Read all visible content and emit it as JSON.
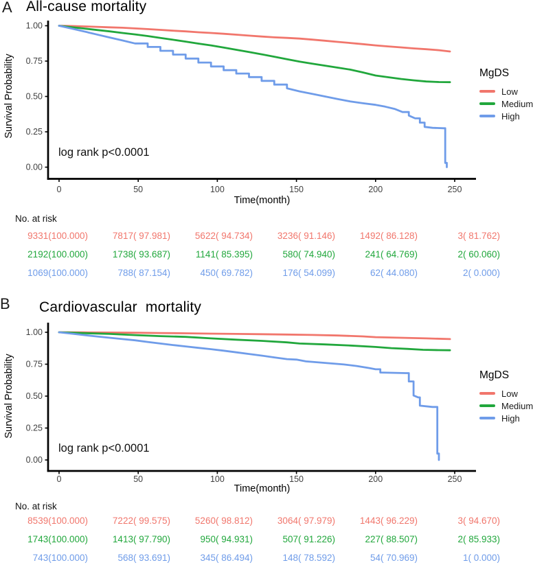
{
  "chart_data": [
    {
      "type": "line",
      "subtype": "kaplan_meier_step",
      "panel_label": "A",
      "title": "All-cause mortality",
      "xlabel": "Time(month)",
      "ylabel": "Survival Probability",
      "annotation": "log rank p<0.0001",
      "xlim": [
        0,
        250
      ],
      "ylim": [
        0,
        1
      ],
      "xticks": [
        0,
        50,
        100,
        150,
        200,
        250
      ],
      "yticks": [
        1.0,
        0.75,
        0.5,
        0.25,
        0.0
      ],
      "grid": false,
      "legend": {
        "title": "MgDS",
        "position": "right"
      },
      "series": [
        {
          "name": "Low",
          "color": "#F1766C",
          "points": [
            [
              0,
              1
            ],
            [
              8,
              0.998
            ],
            [
              16,
              0.995
            ],
            [
              24,
              0.992
            ],
            [
              32,
              0.989
            ],
            [
              40,
              0.986
            ],
            [
              48,
              0.981
            ],
            [
              56,
              0.976
            ],
            [
              64,
              0.971
            ],
            [
              72,
              0.965
            ],
            [
              80,
              0.96
            ],
            [
              88,
              0.954
            ],
            [
              96,
              0.949
            ],
            [
              104,
              0.943
            ],
            [
              112,
              0.937
            ],
            [
              120,
              0.93
            ],
            [
              128,
              0.924
            ],
            [
              136,
              0.918
            ],
            [
              144,
              0.914
            ],
            [
              152,
              0.909
            ],
            [
              160,
              0.902
            ],
            [
              168,
              0.894
            ],
            [
              176,
              0.886
            ],
            [
              184,
              0.878
            ],
            [
              192,
              0.87
            ],
            [
              200,
              0.861
            ],
            [
              208,
              0.854
            ],
            [
              216,
              0.847
            ],
            [
              224,
              0.84
            ],
            [
              232,
              0.834
            ],
            [
              240,
              0.827
            ],
            [
              247,
              0.818
            ]
          ]
        },
        {
          "name": "Medium",
          "color": "#21A73C",
          "points": [
            [
              0,
              1
            ],
            [
              8,
              0.99
            ],
            [
              16,
              0.98
            ],
            [
              24,
              0.97
            ],
            [
              32,
              0.96
            ],
            [
              40,
              0.949
            ],
            [
              48,
              0.939
            ],
            [
              56,
              0.927
            ],
            [
              64,
              0.914
            ],
            [
              72,
              0.901
            ],
            [
              80,
              0.888
            ],
            [
              88,
              0.874
            ],
            [
              96,
              0.861
            ],
            [
              104,
              0.846
            ],
            [
              112,
              0.83
            ],
            [
              120,
              0.814
            ],
            [
              128,
              0.798
            ],
            [
              136,
              0.781
            ],
            [
              144,
              0.763
            ],
            [
              152,
              0.746
            ],
            [
              160,
              0.732
            ],
            [
              168,
              0.718
            ],
            [
              176,
              0.704
            ],
            [
              184,
              0.69
            ],
            [
              192,
              0.67
            ],
            [
              200,
              0.648
            ],
            [
              208,
              0.636
            ],
            [
              216,
              0.624
            ],
            [
              224,
              0.614
            ],
            [
              232,
              0.606
            ],
            [
              240,
              0.602
            ],
            [
              247,
              0.601
            ]
          ]
        },
        {
          "name": "High",
          "color": "#6F9CE9",
          "points": [
            [
              0,
              1
            ],
            [
              8,
              0.98
            ],
            [
              16,
              0.959
            ],
            [
              24,
              0.938
            ],
            [
              32,
              0.917
            ],
            [
              40,
              0.896
            ],
            [
              48,
              0.875
            ],
            [
              56,
              0.85
            ],
            [
              64,
              0.823
            ],
            [
              72,
              0.796
            ],
            [
              80,
              0.768
            ],
            [
              88,
              0.74
            ],
            [
              96,
              0.712
            ],
            [
              104,
              0.686
            ],
            [
              112,
              0.662
            ],
            [
              120,
              0.637
            ],
            [
              128,
              0.61
            ],
            [
              136,
              0.584
            ],
            [
              144,
              0.558
            ],
            [
              152,
              0.536
            ],
            [
              160,
              0.518
            ],
            [
              168,
              0.5
            ],
            [
              176,
              0.482
            ],
            [
              184,
              0.465
            ],
            [
              192,
              0.452
            ],
            [
              200,
              0.441
            ],
            [
              206,
              0.428
            ],
            [
              212,
              0.412
            ],
            [
              217,
              0.39
            ],
            [
              221,
              0.365
            ],
            [
              225,
              0.345
            ],
            [
              228,
              0.315
            ],
            [
              231,
              0.285
            ],
            [
              236,
              0.278
            ],
            [
              243,
              0.275
            ],
            [
              244,
              0.03
            ],
            [
              245,
              0
            ]
          ]
        }
      ],
      "risk_table": {
        "header": "No. at risk",
        "times": [
          0,
          50,
          100,
          150,
          200,
          250
        ],
        "rows": [
          {
            "name": "Low",
            "color": "#F1766C",
            "values": [
              "9331(100.000)",
              "7817( 97.981)",
              "5622( 94.734)",
              "3236( 91.146)",
              "1492( 86.128)",
              "3( 81.762)"
            ]
          },
          {
            "name": "Medium",
            "color": "#21A73C",
            "values": [
              "2192(100.000)",
              "1738( 93.687)",
              "1141( 85.395)",
              "580( 74.940)",
              "241( 64.769)",
              "2( 60.060)"
            ]
          },
          {
            "name": "High",
            "color": "#6F9CE9",
            "values": [
              "1069(100.000)",
              "788( 87.154)",
              "450( 69.782)",
              "176( 54.099)",
              "62( 44.080)",
              "2( 0.000)"
            ]
          }
        ]
      }
    },
    {
      "type": "line",
      "subtype": "kaplan_meier_step",
      "panel_label": "B",
      "title": "Cardiovascular  mortality",
      "xlabel": "Time(month)",
      "ylabel": "Survival Probability",
      "annotation": "log rank p<0.0001",
      "xlim": [
        0,
        250
      ],
      "ylim": [
        0,
        1
      ],
      "xticks": [
        0,
        50,
        100,
        150,
        200,
        250
      ],
      "yticks": [
        1.0,
        0.75,
        0.5,
        0.25,
        0.0
      ],
      "grid": false,
      "legend": {
        "title": "MgDS",
        "position": "right"
      },
      "series": [
        {
          "name": "Low",
          "color": "#F1766C",
          "points": [
            [
              0,
              1
            ],
            [
              16,
              0.999
            ],
            [
              32,
              0.998
            ],
            [
              48,
              0.996
            ],
            [
              64,
              0.994
            ],
            [
              80,
              0.992
            ],
            [
              96,
              0.989
            ],
            [
              112,
              0.987
            ],
            [
              128,
              0.985
            ],
            [
              144,
              0.982
            ],
            [
              160,
              0.979
            ],
            [
              176,
              0.975
            ],
            [
              192,
              0.968
            ],
            [
              200,
              0.962
            ],
            [
              216,
              0.957
            ],
            [
              232,
              0.952
            ],
            [
              247,
              0.947
            ]
          ]
        },
        {
          "name": "Medium",
          "color": "#21A73C",
          "points": [
            [
              0,
              1
            ],
            [
              16,
              0.993
            ],
            [
              32,
              0.987
            ],
            [
              48,
              0.978
            ],
            [
              64,
              0.97
            ],
            [
              80,
              0.964
            ],
            [
              96,
              0.952
            ],
            [
              112,
              0.942
            ],
            [
              128,
              0.933
            ],
            [
              144,
              0.921
            ],
            [
              152,
              0.912
            ],
            [
              168,
              0.905
            ],
            [
              184,
              0.896
            ],
            [
              200,
              0.885
            ],
            [
              210,
              0.876
            ],
            [
              220,
              0.87
            ],
            [
              230,
              0.863
            ],
            [
              240,
              0.86
            ],
            [
              247,
              0.859
            ]
          ]
        },
        {
          "name": "High",
          "color": "#6F9CE9",
          "points": [
            [
              0,
              1
            ],
            [
              8,
              0.989
            ],
            [
              16,
              0.978
            ],
            [
              24,
              0.967
            ],
            [
              32,
              0.957
            ],
            [
              40,
              0.947
            ],
            [
              48,
              0.937
            ],
            [
              56,
              0.924
            ],
            [
              64,
              0.912
            ],
            [
              72,
              0.9
            ],
            [
              80,
              0.889
            ],
            [
              88,
              0.878
            ],
            [
              96,
              0.868
            ],
            [
              104,
              0.856
            ],
            [
              112,
              0.843
            ],
            [
              120,
              0.83
            ],
            [
              128,
              0.817
            ],
            [
              136,
              0.803
            ],
            [
              144,
              0.79
            ],
            [
              150,
              0.786
            ],
            [
              156,
              0.772
            ],
            [
              164,
              0.764
            ],
            [
              172,
              0.756
            ],
            [
              180,
              0.748
            ],
            [
              188,
              0.736
            ],
            [
              196,
              0.72
            ],
            [
              200,
              0.71
            ],
            [
              203,
              0.685
            ],
            [
              219,
              0.68
            ],
            [
              221,
              0.615
            ],
            [
              224,
              0.505
            ],
            [
              227,
              0.49
            ],
            [
              228,
              0.425
            ],
            [
              236,
              0.415
            ],
            [
              238,
              0.415
            ],
            [
              239,
              0.05
            ],
            [
              240,
              0
            ]
          ]
        }
      ],
      "risk_table": {
        "header": "No. at risk",
        "times": [
          0,
          50,
          100,
          150,
          200,
          250
        ],
        "rows": [
          {
            "name": "Low",
            "color": "#F1766C",
            "values": [
              "8539(100.000)",
              "7222( 99.575)",
              "5260( 98.812)",
              "3064( 97.979)",
              "1443( 96.229)",
              "3( 94.670)"
            ]
          },
          {
            "name": "Medium",
            "color": "#21A73C",
            "values": [
              "1743(100.000)",
              "1413( 97.790)",
              "950( 94.931)",
              "507( 91.226)",
              "227( 88.507)",
              "2( 85.933)"
            ]
          },
          {
            "name": "High",
            "color": "#6F9CE9",
            "values": [
              "743(100.000)",
              "568( 93.691)",
              "345( 86.494)",
              "148( 78.592)",
              "54( 70.969)",
              "1( 0.000)"
            ]
          }
        ]
      }
    }
  ],
  "colors": {
    "low": "#F1766C",
    "medium": "#21A73C",
    "high": "#6F9CE9",
    "axis": "#000000",
    "tick_label": "#404040"
  }
}
